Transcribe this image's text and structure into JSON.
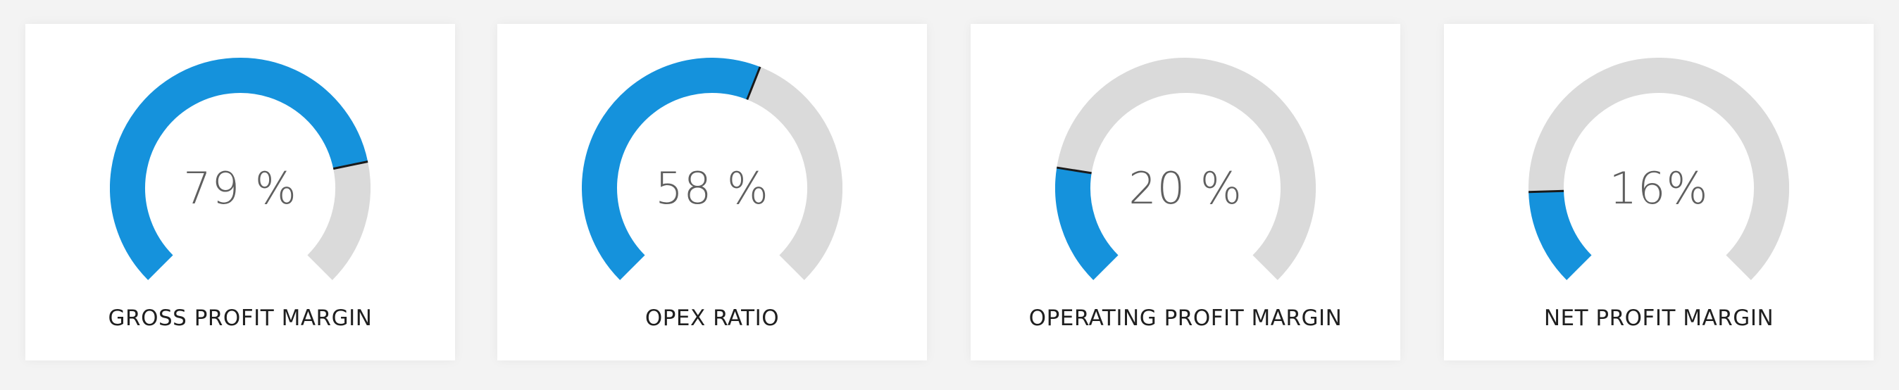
{
  "gauges": [
    {
      "value_text": "79 %",
      "value": 0.79,
      "label": "GROSS PROFIT MARGIN"
    },
    {
      "value_text": "58 %",
      "value": 0.58,
      "label": "OPEX RATIO"
    },
    {
      "value_text": "20 %",
      "value": 0.2,
      "label": "OPERATING PROFIT MARGIN"
    },
    {
      "value_text": "16%",
      "value": 0.16,
      "label": "NET PROFIT MARGIN"
    }
  ],
  "colors": {
    "fill": "#1592dc",
    "track": "#dadada",
    "marker": "#1a1a1a",
    "value_text": "#5f5f5f",
    "label_text": "#1f1f1f"
  }
}
